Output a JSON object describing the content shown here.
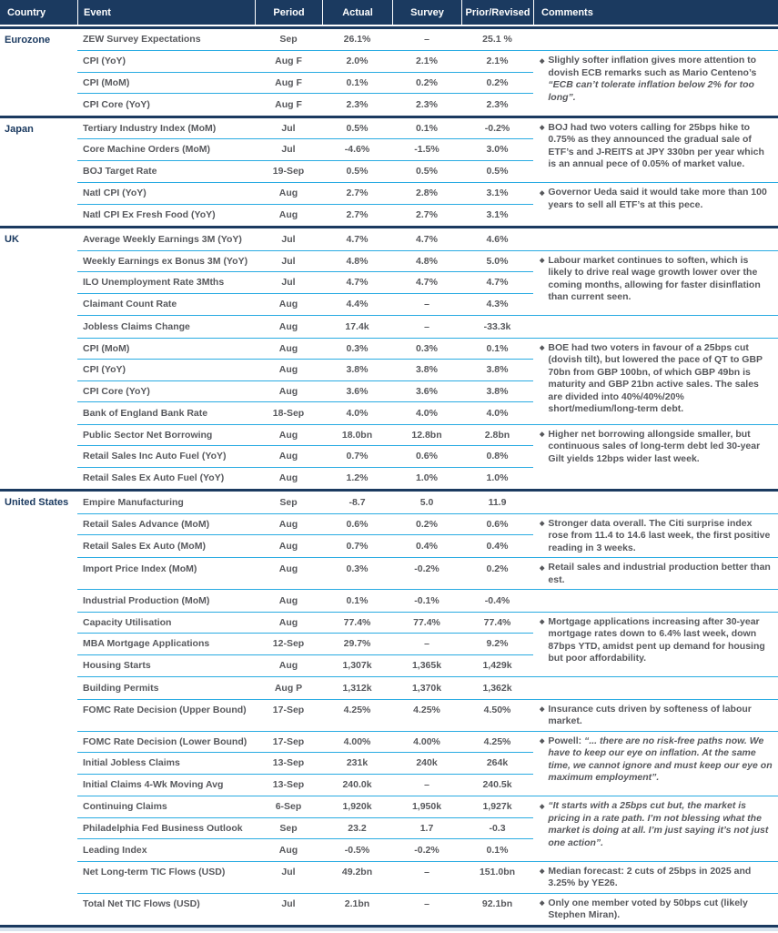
{
  "header": {
    "country": "Country",
    "event": "Event",
    "period": "Period",
    "actual": "Actual",
    "survey": "Survey",
    "prior": "Prior/Revised",
    "comments": "Comments"
  },
  "bullet_glyph": "◆",
  "colors": {
    "header_bg": "#1B3A60",
    "header_text": "#FFFFFF",
    "country_text": "#1B3A60",
    "body_text": "#57585C",
    "row_separator": "#29ABE2",
    "section_separator": "#1B3A60",
    "footer_strip": "#D9E4EE"
  },
  "sections": [
    {
      "country": "Eurozone",
      "groups": [
        {
          "rows": [
            {
              "event": "ZEW Survey Expectations",
              "period": "Sep",
              "actual": "26.1%",
              "survey": "–",
              "prior": "25.1 %"
            }
          ],
          "comments": []
        },
        {
          "rows": [
            {
              "event": "CPI (YoY)",
              "period": "Aug F",
              "actual": "2.0%",
              "survey": "2.1%",
              "prior": "2.1%"
            },
            {
              "event": "CPI (MoM)",
              "period": "Aug F",
              "actual": "0.1%",
              "survey": "0.2%",
              "prior": "0.2%"
            },
            {
              "event": "CPI Core (YoY)",
              "period": "Aug F",
              "actual": "2.3%",
              "survey": "2.3%",
              "prior": "2.3%"
            }
          ],
          "comments": [
            {
              "segments": [
                {
                  "text": "Slighly softer inflation gives more attention to dovish ECB remarks such as Mario Centeno’s ",
                  "italic": false
                },
                {
                  "text": "“ECB can’t tolerate inflation below 2% for too long”.",
                  "italic": true
                }
              ]
            }
          ]
        }
      ]
    },
    {
      "country": "Japan",
      "groups": [
        {
          "rows": [
            {
              "event": "Tertiary Industry Index (MoM)",
              "period": "Jul",
              "actual": "0.5%",
              "survey": "0.1%",
              "prior": "-0.2%"
            },
            {
              "event": "Core Machine Orders (MoM)",
              "period": "Jul",
              "actual": "-4.6%",
              "survey": "-1.5%",
              "prior": "3.0%"
            },
            {
              "event": "BOJ Target Rate",
              "period": "19-Sep",
              "actual": "0.5%",
              "survey": "0.5%",
              "prior": "0.5%"
            }
          ],
          "comments": [
            {
              "segments": [
                {
                  "text": "BOJ had two voters calling for 25bps hike to 0.75% as they announced the gradual sale of ETF’s and J-REITS at JPY 330bn per year which is an annual pece of 0.05% of market value.",
                  "italic": false
                }
              ]
            }
          ]
        },
        {
          "rows": [
            {
              "event": "Natl CPI (YoY)",
              "period": "Aug",
              "actual": "2.7%",
              "survey": "2.8%",
              "prior": "3.1%"
            },
            {
              "event": "Natl CPI Ex Fresh Food (YoY)",
              "period": "Aug",
              "actual": "2.7%",
              "survey": "2.7%",
              "prior": "3.1%"
            }
          ],
          "comments": [
            {
              "segments": [
                {
                  "text": "Governor Ueda said it would take more than 100 years to sell all ETF’s at this pece.",
                  "italic": false
                }
              ]
            }
          ]
        }
      ]
    },
    {
      "country": "UK",
      "groups": [
        {
          "rows": [
            {
              "event": "Average Weekly Earnings 3M (YoY)",
              "period": "Jul",
              "actual": "4.7%",
              "survey": "4.7%",
              "prior": "4.6%"
            }
          ],
          "comments": []
        },
        {
          "rows": [
            {
              "event": "Weekly Earnings ex Bonus 3M (YoY)",
              "period": "Jul",
              "actual": "4.8%",
              "survey": "4.8%",
              "prior": "5.0%"
            },
            {
              "event": "ILO Unemployment Rate 3Mths",
              "period": "Jul",
              "actual": "4.7%",
              "survey": "4.7%",
              "prior": "4.7%"
            },
            {
              "event": "Claimant Count Rate",
              "period": "Aug",
              "actual": "4.4%",
              "survey": "–",
              "prior": "4.3%"
            }
          ],
          "comments": [
            {
              "segments": [
                {
                  "text": "Labour market continues to soften, which is likely to drive real wage growth lower over the coming months, allowing for faster disinflation than current seen.",
                  "italic": false
                }
              ]
            }
          ]
        },
        {
          "rows": [
            {
              "event": "Jobless Claims Change",
              "period": "Aug",
              "actual": "17.4k",
              "survey": "–",
              "prior": "-33.3k"
            }
          ],
          "comments": []
        },
        {
          "rows": [
            {
              "event": "CPI (MoM)",
              "period": "Aug",
              "actual": "0.3%",
              "survey": "0.3%",
              "prior": "0.1%"
            },
            {
              "event": "CPI (YoY)",
              "period": "Aug",
              "actual": "3.8%",
              "survey": "3.8%",
              "prior": "3.8%"
            },
            {
              "event": "CPI Core (YoY)",
              "period": "Aug",
              "actual": "3.6%",
              "survey": "3.6%",
              "prior": "3.8%"
            },
            {
              "event": "Bank of England Bank Rate",
              "period": "18-Sep",
              "actual": "4.0%",
              "survey": "4.0%",
              "prior": "4.0%"
            }
          ],
          "comments": [
            {
              "segments": [
                {
                  "text": "BOE had two voters in favour of a 25bps cut (dovish tilt), but lowered the pace of QT to GBP 70bn from GBP 100bn, of which GBP 49bn is maturity and GBP 21bn active sales. The sales are divided into 40%/40%/20% short/medium/long-term debt.",
                  "italic": false
                }
              ]
            }
          ]
        },
        {
          "rows": [
            {
              "event": "Public Sector Net Borrowing",
              "period": "Aug",
              "actual": "18.0bn",
              "survey": "12.8bn",
              "prior": "2.8bn"
            },
            {
              "event": "Retail Sales Inc Auto Fuel (YoY)",
              "period": "Aug",
              "actual": "0.7%",
              "survey": "0.6%",
              "prior": "0.8%"
            },
            {
              "event": "Retail Sales Ex Auto Fuel (YoY)",
              "period": "Aug",
              "actual": "1.2%",
              "survey": "1.0%",
              "prior": "1.0%"
            }
          ],
          "comments": [
            {
              "segments": [
                {
                  "text": "Higher net borrowing allongside smaller, but continuous sales of long-term debt led 30-year Gilt yields 12bps wider last week.",
                  "italic": false
                }
              ]
            }
          ]
        }
      ]
    },
    {
      "country": "United States",
      "groups": [
        {
          "rows": [
            {
              "event": "Empire Manufacturing",
              "period": "Sep",
              "actual": "-8.7",
              "survey": "5.0",
              "prior": "11.9"
            }
          ],
          "comments": []
        },
        {
          "rows": [
            {
              "event": "Retail Sales Advance (MoM)",
              "period": "Aug",
              "actual": "0.6%",
              "survey": "0.2%",
              "prior": "0.6%"
            },
            {
              "event": "Retail Sales Ex Auto (MoM)",
              "period": "Aug",
              "actual": "0.7%",
              "survey": "0.4%",
              "prior": "0.4%"
            }
          ],
          "comments": [
            {
              "segments": [
                {
                  "text": "Stronger data overall. The Citi surprise index rose from 11.4 to 14.6 last week, the first positive reading in 3 weeks.",
                  "italic": false
                }
              ]
            }
          ]
        },
        {
          "rows": [
            {
              "event": "Import Price Index (MoM)",
              "period": "Aug",
              "actual": "0.3%",
              "survey": "-0.2%",
              "prior": "0.2%"
            }
          ],
          "comments": [
            {
              "segments": [
                {
                  "text": "Retail sales and industrial production better than est.",
                  "italic": false
                }
              ]
            }
          ]
        },
        {
          "rows": [
            {
              "event": "Industrial Production (MoM)",
              "period": "Aug",
              "actual": "0.1%",
              "survey": "-0.1%",
              "prior": "-0.4%"
            }
          ],
          "comments": []
        },
        {
          "rows": [
            {
              "event": "Capacity Utilisation",
              "period": "Aug",
              "actual": "77.4%",
              "survey": "77.4%",
              "prior": "77.4%"
            },
            {
              "event": "MBA Mortgage Applications",
              "period": "12-Sep",
              "actual": "29.7%",
              "survey": "–",
              "prior": "9.2%"
            },
            {
              "event": "Housing Starts",
              "period": "Aug",
              "actual": "1,307k",
              "survey": "1,365k",
              "prior": "1,429k"
            }
          ],
          "comments": [
            {
              "segments": [
                {
                  "text": "Mortgage applications increasing after 30-year mortgage rates down to 6.4% last week, down 87bps YTD, amidst pent up demand for housing but poor affordability.",
                  "italic": false
                }
              ]
            }
          ]
        },
        {
          "rows": [
            {
              "event": "Building Permits",
              "period": "Aug P",
              "actual": "1,312k",
              "survey": "1,370k",
              "prior": "1,362k"
            }
          ],
          "comments": []
        },
        {
          "rows": [
            {
              "event": "FOMC Rate Decision (Upper Bound)",
              "period": "17-Sep",
              "actual": "4.25%",
              "survey": "4.25%",
              "prior": "4.50%"
            }
          ],
          "comments": [
            {
              "segments": [
                {
                  "text": "Insurance cuts driven by softeness of labour market.",
                  "italic": false
                }
              ]
            }
          ]
        },
        {
          "rows": [
            {
              "event": "FOMC Rate Decision (Lower Bound)",
              "period": "17-Sep",
              "actual": "4.00%",
              "survey": "4.00%",
              "prior": "4.25%"
            },
            {
              "event": "Initial Jobless Claims",
              "period": "13-Sep",
              "actual": "231k",
              "survey": "240k",
              "prior": "264k"
            },
            {
              "event": "Initial Claims 4-Wk Moving Avg",
              "period": "13-Sep",
              "actual": "240.0k",
              "survey": "–",
              "prior": "240.5k"
            }
          ],
          "comments": [
            {
              "segments": [
                {
                  "text": "Powell: ",
                  "italic": false
                },
                {
                  "text": "“... there are no risk-free paths now. We have to keep our eye on inflation. At the same time, we cannot ignore and must keep our eye on maximum employment”.",
                  "italic": true
                }
              ]
            }
          ]
        },
        {
          "rows": [
            {
              "event": "Continuing Claims",
              "period": "6-Sep",
              "actual": "1,920k",
              "survey": "1,950k",
              "prior": "1,927k"
            },
            {
              "event": "Philadelphia Fed Business Outlook",
              "period": "Sep",
              "actual": "23.2",
              "survey": "1.7",
              "prior": "-0.3"
            },
            {
              "event": "Leading Index",
              "period": "Aug",
              "actual": "-0.5%",
              "survey": "-0.2%",
              "prior": "0.1%"
            }
          ],
          "comments": [
            {
              "segments": [
                {
                  "text": "“It starts with a 25bps cut but, the market is pricing in a rate path. I’m not blessing what the market is doing at all. I’m just saying it’s not just one action”.",
                  "italic": true
                }
              ]
            }
          ]
        },
        {
          "rows": [
            {
              "event": "Net Long-term TIC Flows (USD)",
              "period": "Jul",
              "actual": "49.2bn",
              "survey": "–",
              "prior": "151.0bn"
            }
          ],
          "comments": [
            {
              "segments": [
                {
                  "text": "Median forecast: 2 cuts of 25bps in 2025 and 3.25% by YE26.",
                  "italic": false
                }
              ]
            }
          ]
        },
        {
          "rows": [
            {
              "event": "Total Net TIC Flows (USD)",
              "period": "Jul",
              "actual": "2.1bn",
              "survey": "–",
              "prior": "92.1bn"
            }
          ],
          "comments": [
            {
              "segments": [
                {
                  "text": "Only one member voted by 50bps cut (likely Stephen Miran).",
                  "italic": false
                }
              ]
            }
          ]
        }
      ]
    }
  ]
}
